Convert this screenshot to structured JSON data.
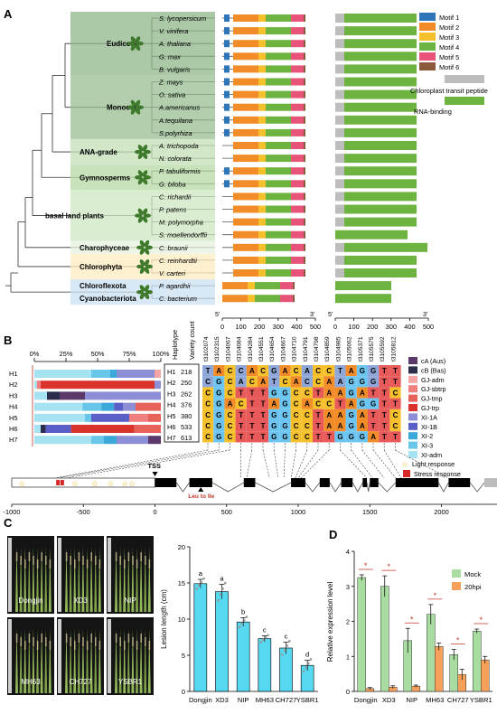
{
  "panels": {
    "A": "A",
    "B": "B",
    "C": "C",
    "D": "D"
  },
  "panel_a": {
    "species": [
      {
        "name": "S. lycopersicum",
        "motif1": true,
        "ctp": true
      },
      {
        "name": "V. vinifera",
        "motif1": true,
        "ctp": true
      },
      {
        "name": "A. thaliana",
        "motif1": true,
        "ctp": true
      },
      {
        "name": "G. max",
        "motif1": true,
        "ctp": true
      },
      {
        "name": "B. vulgaris",
        "motif1": true,
        "ctp": true
      },
      {
        "name": "Z. mays",
        "motif1": true,
        "ctp": true
      },
      {
        "name": "O. sativa",
        "motif1": true,
        "ctp": true
      },
      {
        "name": "A.americanus",
        "motif1": true,
        "ctp": true
      },
      {
        "name": "A.tequilana",
        "motif1": true,
        "ctp": true
      },
      {
        "name": "S.polyrhiza",
        "motif1": true,
        "ctp": true
      },
      {
        "name": "A. trichopoda",
        "motif1": false,
        "ctp": true
      },
      {
        "name": "N. colorata",
        "motif1": false,
        "ctp": true
      },
      {
        "name": "P. tabuliformis",
        "motif1": true,
        "ctp": true
      },
      {
        "name": "G. biloba",
        "motif1": true,
        "ctp": true
      },
      {
        "name": "C. richardii",
        "motif1": false,
        "ctp": true
      },
      {
        "name": "P. patens",
        "motif1": false,
        "ctp": true
      },
      {
        "name": "M. polymorpha",
        "motif1": false,
        "ctp": true
      },
      {
        "name": "S. moellendorffii",
        "motif1": false,
        "ctp": false
      },
      {
        "name": "C. braunii",
        "motif1": false,
        "ctp": true
      },
      {
        "name": "C. reinhardtii",
        "motif1": false,
        "ctp": true
      },
      {
        "name": "V. carteri",
        "motif1": false,
        "ctp": true
      },
      {
        "name": "P. agardhii",
        "motif1": false,
        "ctp": false
      },
      {
        "name": "C. bacterium",
        "motif1": false,
        "ctp": false
      }
    ],
    "groups": [
      "Eudicots",
      "Monocots",
      "ANA-grade",
      "Gymnosperms",
      "basal land plants",
      "Charophyceae",
      "Chlorophyta",
      "Chloroflexota",
      "Cyanobacteriota"
    ],
    "motif_legend": [
      {
        "label": "Motif 1",
        "color": "#2f76b8"
      },
      {
        "label": "Motif 2",
        "color": "#f28c28"
      },
      {
        "label": "Motif 3",
        "color": "#f5c02c"
      },
      {
        "label": "Motif 4",
        "color": "#6cb33f"
      },
      {
        "label": "Motif 5",
        "color": "#e8537a"
      },
      {
        "label": "Motif 6",
        "color": "#8b5a3c"
      }
    ],
    "domain_legend": [
      {
        "label": "Chloroplast transit peptide",
        "color": "#bdbdbd"
      },
      {
        "label": "RNA-binding",
        "color": "#6cb33f"
      }
    ],
    "prime5": "5'",
    "prime3": "3'",
    "axis_ticks": [
      "0",
      "100",
      "200",
      "300",
      "400",
      "500"
    ]
  },
  "panel_b": {
    "percent_ticks": [
      "0%",
      "25%",
      "50%",
      "75%",
      "100%"
    ],
    "haplotypes": [
      "H1",
      "H2",
      "H3",
      "H4",
      "H5",
      "H6",
      "H7"
    ],
    "variety_counts": [
      "218",
      "250",
      "262",
      "376",
      "380",
      "533",
      "613"
    ],
    "col_header_haplotype": "Haplotype",
    "col_header_count": "Variety count",
    "snp_ids": [
      "t3102074",
      "t3102315",
      "t3104067",
      "t3104084",
      "t3104284",
      "t3104551",
      "t3104654",
      "t3104667",
      "t3104710",
      "t3104791",
      "t3104798",
      "t3104859",
      "t3104985",
      "t3105062",
      "t3105371",
      "t3105575",
      "t3105592",
      "t3105812"
    ],
    "rows": [
      "TACCACGACACCTAGGTT",
      "CGCACATCACCAAGGGTT",
      "CGCTTTGGCCTAAGATTC",
      "CGACTTAGCACCTAGGTT",
      "CGCTTTGGCCTAAGATTC",
      "CGCTTTGGCCTAAGATTC",
      "CGCTTTGGCCTTGGGATT"
    ],
    "subpop_legend": [
      {
        "label": "cA (Aus)",
        "color": "#5b3a6b"
      },
      {
        "label": "cB (Bas)",
        "color": "#2b2d4a"
      },
      {
        "label": "GJ-adm",
        "color": "#f4a6a6"
      },
      {
        "label": "GJ-sbtrp",
        "color": "#f08080"
      },
      {
        "label": "GJ-tmp",
        "color": "#e8625c"
      },
      {
        "label": "GJ-trp",
        "color": "#d9332b"
      },
      {
        "label": "XI-1A",
        "color": "#8c8fd6"
      },
      {
        "label": "XI-1B",
        "color": "#5a5fc8"
      },
      {
        "label": "XI-2",
        "color": "#3aa8d8"
      },
      {
        "label": "XI-3",
        "color": "#68c7e8"
      },
      {
        "label": "XI-adm",
        "color": "#a5e3f2"
      }
    ],
    "cis_legend": [
      {
        "label": "Light response"
      },
      {
        "label": "Stress response"
      }
    ],
    "tss": "TSS",
    "mutation": "Leu to Ile",
    "gene_ticks": [
      "-1000",
      "-500",
      "0",
      "500",
      "1000",
      "1500",
      "2000",
      "2500 nt"
    ]
  },
  "panel_c": {
    "photo_labels": [
      "Dongjin",
      "XD3",
      "NIP",
      "MH63",
      "CH727",
      "YSBR1"
    ],
    "ylabel": "Lesion length (cm)",
    "yticks": [
      "0",
      "5",
      "10",
      "15",
      "20"
    ]
  },
  "panel_d": {
    "ylabel": "Relative expression level",
    "yticks": [
      "0",
      "1",
      "2",
      "3",
      "4"
    ],
    "legend": [
      "Mock",
      "20hpi"
    ],
    "sig_mark": "*"
  },
  "chart_data": [
    {
      "type": "bar",
      "categories": [
        "Dongjin",
        "XD3",
        "NIP",
        "MH63",
        "CH727",
        "YSBR1"
      ],
      "values": [
        14.9,
        13.8,
        9.6,
        7.3,
        6.0,
        3.6
      ],
      "errors": [
        0.6,
        1.0,
        0.6,
        0.4,
        0.8,
        0.7
      ],
      "letters": [
        "a",
        "a",
        "b",
        "c",
        "c",
        "d"
      ],
      "ylabel": "Lesion length (cm)",
      "ylim": [
        0,
        20
      ],
      "color": "#56d8f0"
    },
    {
      "type": "bar",
      "categories": [
        "Dongjin",
        "XD3",
        "NIP",
        "MH63",
        "CH727",
        "YSBR1"
      ],
      "series": [
        {
          "name": "Mock",
          "values": [
            3.25,
            3.0,
            1.45,
            2.2,
            1.05,
            1.72
          ],
          "errors": [
            0.08,
            0.3,
            0.35,
            0.28,
            0.15,
            0.06
          ],
          "color": "#a9dca0"
        },
        {
          "name": "20hpi",
          "values": [
            0.08,
            0.12,
            0.15,
            1.28,
            0.48,
            0.9
          ],
          "errors": [
            0.03,
            0.04,
            0.03,
            0.1,
            0.15,
            0.1
          ],
          "color": "#f6a05a"
        }
      ],
      "ylabel": "Relative expression level",
      "ylim": [
        0,
        4
      ],
      "legend": "top-right"
    }
  ]
}
